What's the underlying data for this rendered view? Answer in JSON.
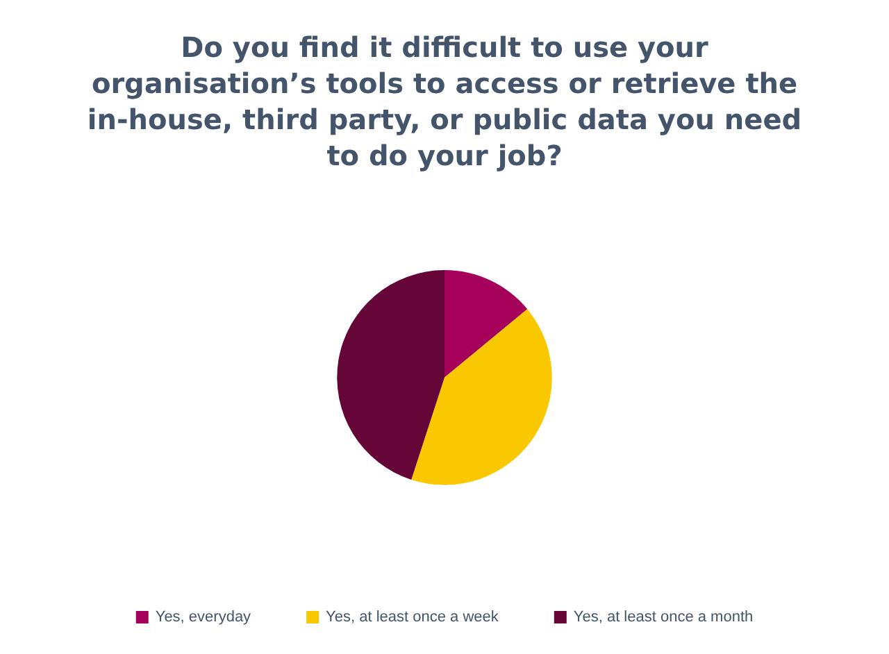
{
  "chart_data": {
    "type": "pie",
    "title": "Do you find it difficult to use your\norganisation’s tools to access or retrieve the\nin-house, third party, or public data you need\nto do your job?",
    "categories": [
      "Yes, everyday",
      "Yes, at least once a week",
      "Yes, at least once a month"
    ],
    "values": [
      14,
      41,
      45
    ],
    "colors": [
      "#a5005a",
      "#f9c800",
      "#660538"
    ],
    "legend": "bottom"
  }
}
